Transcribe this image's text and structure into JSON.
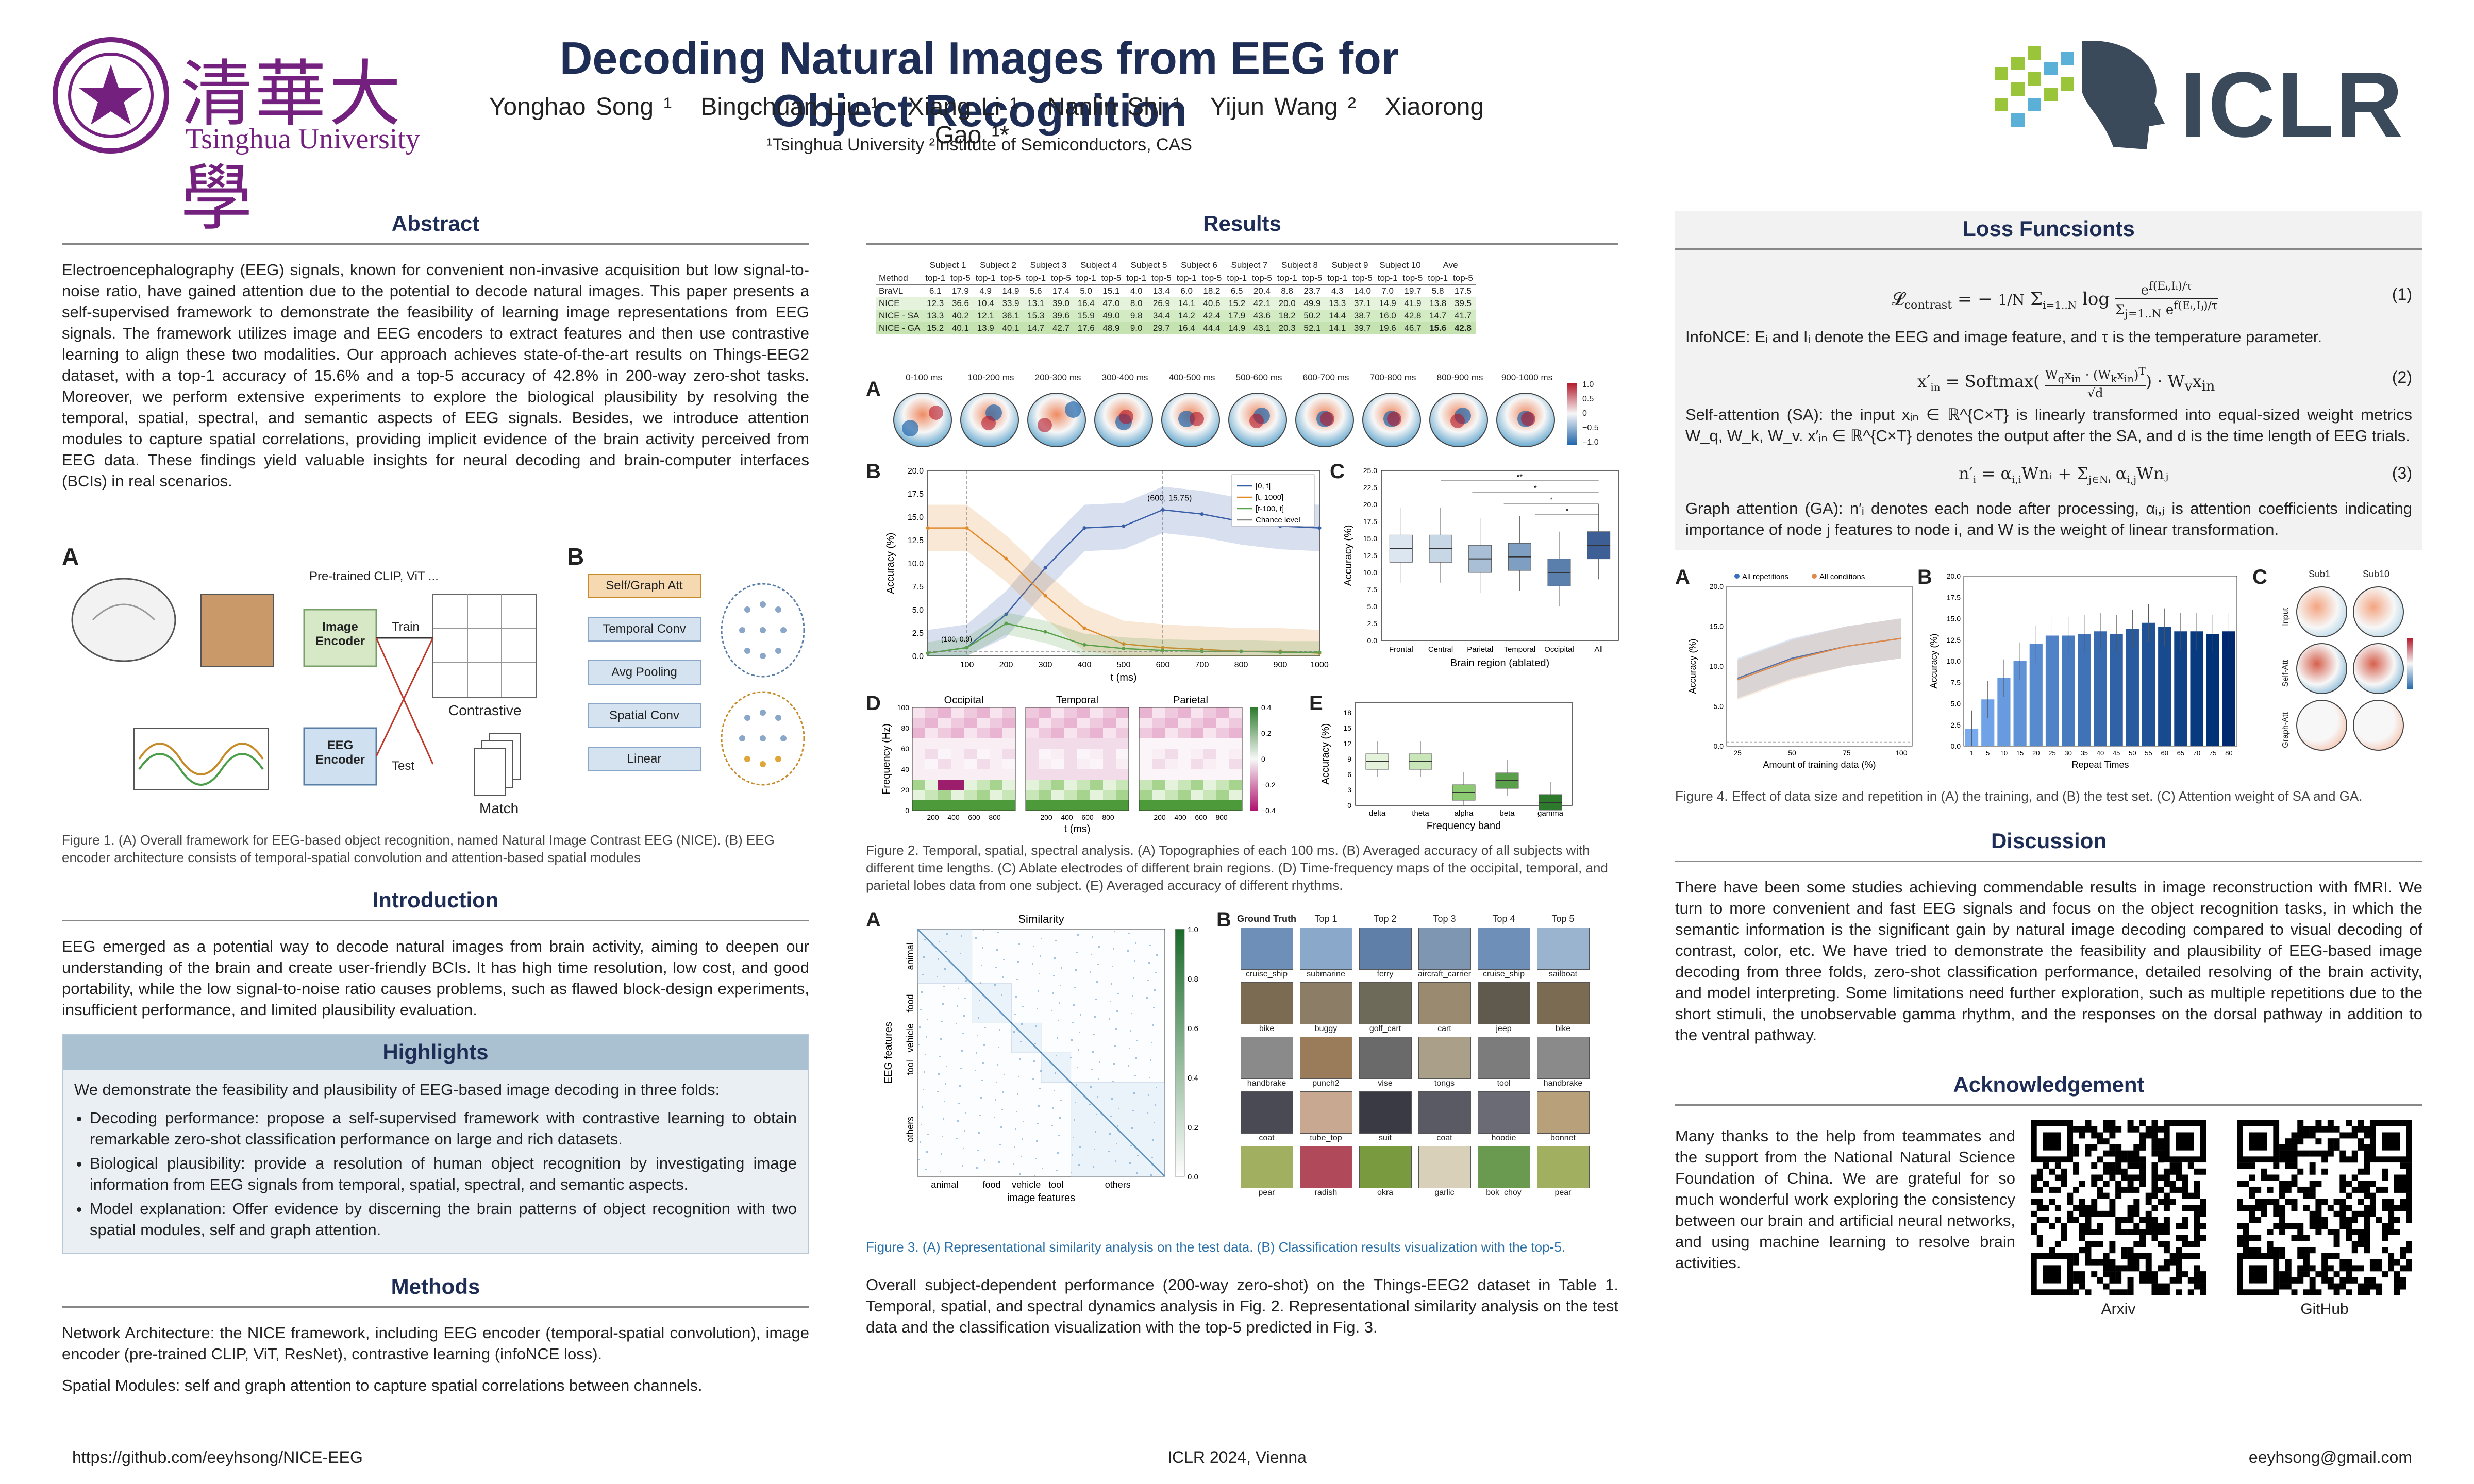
{
  "header": {
    "title": "Decoding Natural Images from EEG for Object Recognition",
    "authors": [
      "Yonghao Song ¹",
      "Bingchuan Liu ¹",
      "Xiang Li ¹",
      "Nanlin Shi ¹",
      "Yijun Wang ²",
      "Xiaorong Gao ¹*"
    ],
    "affiliations": "¹Tsinghua University ²Institute of Semiconductors, CAS",
    "left_logo_text": "Tsinghua University",
    "left_logo_chars": "清華大學",
    "right_logo_text": "ICLR"
  },
  "abstract": {
    "heading": "Abstract",
    "text": "Electroencephalography (EEG) signals, known for convenient non-invasive acquisition but low signal-to-noise ratio, have gained attention due to the potential to decode natural images. This paper presents a self-supervised framework to demonstrate the feasibility of learning image representations from EEG signals. The framework utilizes image and EEG encoders to extract features and then use contrastive learning to align these two modalities. Our approach achieves state-of-the-art results on Things-EEG2 dataset, with a top-1 accuracy of 15.6% and a top-5 accuracy of 42.8% in 200-way zero-shot tasks. Moreover, we perform extensive experiments to explore the biological plausibility by resolving the temporal, spatial, spectral, and semantic aspects of EEG signals. Besides, we introduce attention modules to capture spatial correlations, providing implicit evidence of the brain activity perceived from EEG data. These findings yield valuable insights for neural decoding and brain-computer interfaces (BCIs) in real scenarios."
  },
  "fig1": {
    "panel_a": "A",
    "panel_b": "B",
    "pretrained": "Pre-trained CLIP, ViT ...",
    "image_encoder": "Image Encoder",
    "eeg_encoder": "EEG Encoder",
    "train": "Train",
    "test": "Test",
    "contrastive": "Contrastive",
    "match": "Match",
    "arch": [
      "Self/Graph Att",
      "Temporal Conv",
      "Avg Pooling",
      "Spatial Conv",
      "Linear"
    ],
    "caption": "Figure 1. (A) Overall framework for EEG-based object recognition, named Natural Image Contrast EEG (NICE). (B) EEG encoder architecture consists of temporal-spatial convolution and attention-based spatial modules"
  },
  "introduction": {
    "heading": "Introduction",
    "text": "EEG emerged as a potential way to decode natural images from brain activity, aiming to deepen our understanding of the brain and create user-friendly BCIs. It has high time resolution, low cost, and good portability, while the low signal-to-noise ratio causes problems, such as flawed block-design experiments, insufficient performance, and limited plausibility evaluation."
  },
  "highlights": {
    "heading": "Highlights",
    "intro": "We demonstrate the feasibility and plausibility of EEG-based image decoding in three folds:",
    "items": [
      "Decoding performance: propose a self-supervised framework with contrastive learning to obtain remarkable zero-shot classification performance on large and rich datasets.",
      "Biological plausibility: provide a resolution of human object recognition by investigating image information from EEG signals from temporal, spatial, spectral, and semantic aspects.",
      "Model explanation: Offer evidence by discerning the brain patterns of object recognition with two spatial modules, self and graph attention."
    ]
  },
  "methods": {
    "heading": "Methods",
    "p1": "Network Architecture: the NICE framework, including EEG encoder (temporal-spatial convolution), image encoder (pre-trained CLIP, ViT, ResNet), contrastive learning (infoNCE loss).",
    "p2": "Spatial Modules: self and graph attention to capture spatial correlations between channels."
  },
  "results": {
    "heading": "Results",
    "table": {
      "subjects": [
        "Subject 1",
        "Subject 2",
        "Subject 3",
        "Subject 4",
        "Subject 5",
        "Subject 6",
        "Subject 7",
        "Subject 8",
        "Subject 9",
        "Subject 10",
        "Ave"
      ],
      "method_label": "Method",
      "metrics": [
        "top-1",
        "top-5"
      ],
      "rows": [
        {
          "name": "BraVL",
          "vals": [
            "6.1",
            "17.9",
            "4.9",
            "14.9",
            "5.6",
            "17.4",
            "5.0",
            "15.1",
            "4.0",
            "13.4",
            "6.0",
            "18.2",
            "6.5",
            "20.4",
            "8.8",
            "23.7",
            "4.3",
            "14.0",
            "7.0",
            "19.7",
            "5.8",
            "17.5"
          ]
        },
        {
          "name": "NICE",
          "vals": [
            "12.3",
            "36.6",
            "10.4",
            "33.9",
            "13.1",
            "39.0",
            "16.4",
            "47.0",
            "8.0",
            "26.9",
            "14.1",
            "40.6",
            "15.2",
            "42.1",
            "20.0",
            "49.9",
            "13.3",
            "37.1",
            "14.9",
            "41.9",
            "13.8",
            "39.5"
          ]
        },
        {
          "name": "NICE - SA",
          "vals": [
            "13.3",
            "40.2",
            "12.1",
            "36.1",
            "15.3",
            "39.6",
            "15.9",
            "49.0",
            "9.8",
            "34.4",
            "14.2",
            "42.4",
            "17.9",
            "43.6",
            "18.2",
            "50.2",
            "14.4",
            "38.7",
            "16.0",
            "42.8",
            "14.7",
            "41.7"
          ]
        },
        {
          "name": "NICE - GA",
          "vals": [
            "15.2",
            "40.1",
            "13.9",
            "40.1",
            "14.7",
            "42.7",
            "17.6",
            "48.9",
            "9.0",
            "29.7",
            "16.4",
            "44.4",
            "14.9",
            "43.1",
            "20.3",
            "52.1",
            "14.1",
            "39.7",
            "19.6",
            "46.7",
            "15.6",
            "42.8"
          ]
        }
      ]
    },
    "fig2": {
      "topo_labels": [
        "0-100 ms",
        "100-200 ms",
        "200-300 ms",
        "300-400 ms",
        "400-500 ms",
        "500-600 ms",
        "600-700 ms",
        "700-800 ms",
        "800-900 ms",
        "900-1000 ms"
      ],
      "colorbar": [
        "1.0",
        "0.5",
        "0",
        "−0.5",
        "−1.0"
      ],
      "b_ylabel": "Accuracy (%)",
      "b_xlabel": "t (ms)",
      "b_legend": [
        "[0, t]",
        "[t, 1000]",
        "[t-100, t]",
        "Chance level"
      ],
      "b_annot1": "(600, 15.75)",
      "b_annot2": "(100, 0.9)",
      "b_yticks": [
        "0.0",
        "2.5",
        "5.0",
        "7.5",
        "10.0",
        "12.5",
        "15.0",
        "17.5",
        "20.0"
      ],
      "b_xticks": [
        "100",
        "200",
        "300",
        "400",
        "500",
        "600",
        "700",
        "800",
        "900",
        "1000"
      ],
      "c_ylabel": "Accuracy (%)",
      "c_xlabel": "Brain region (ablated)",
      "c_cats": [
        "Frontal",
        "Central",
        "Parietal",
        "Temporal",
        "Occipital",
        "All"
      ],
      "c_yticks": [
        "0.0",
        "2.5",
        "5.0",
        "7.5",
        "10.0",
        "12.5",
        "15.0",
        "17.5",
        "20.0",
        "22.5",
        "25.0"
      ],
      "c_sig": [
        "**",
        "*",
        "*",
        "*"
      ],
      "d_titles": [
        "Occipital",
        "Temporal",
        "Parietal"
      ],
      "d_ylabel": "Frequency (Hz)",
      "d_xlabel": "t (ms)",
      "d_xticks": [
        "200",
        "400",
        "600",
        "800"
      ],
      "d_yticks": [
        "0",
        "20",
        "40",
        "60",
        "80",
        "100"
      ],
      "d_colorbar": [
        "0.4",
        "0.2",
        "0",
        "−0.2",
        "−0.4"
      ],
      "e_ylabel": "Accuracy (%)",
      "e_xlabel": "Frequency band",
      "e_cats": [
        "delta",
        "theta",
        "alpha",
        "beta",
        "gamma"
      ],
      "e_yticks": [
        "0",
        "3",
        "6",
        "9",
        "12",
        "15",
        "18"
      ],
      "caption": "Figure 2. Temporal, spatial, spectral analysis. (A) Topographies of each 100 ms. (B) Averaged accuracy of all subjects with different time lengths. (C) Ablate electrodes of different brain regions. (D) Time-frequency maps of the occipital, temporal, and parietal lobes data from one subject. (E) Averaged accuracy of different rhythms."
    },
    "fig3": {
      "sim_title": "Similarity",
      "sim_ylabel": "EEG features",
      "sim_xlabel": "image features",
      "sim_cats": [
        "animal",
        "food",
        "vehicle",
        "tool",
        "others"
      ],
      "sim_colorbar": [
        "1.0",
        "0.8",
        "0.6",
        "0.4",
        "0.2",
        "0.0"
      ],
      "grid_headers": [
        "Ground Truth",
        "Top 1",
        "Top 2",
        "Top 3",
        "Top 4",
        "Top 5"
      ],
      "grid": [
        [
          "cruise_ship",
          "submarine",
          "ferry",
          "aircraft_carrier",
          "cruise_ship",
          "sailboat"
        ],
        [
          "bike",
          "buggy",
          "golf_cart",
          "cart",
          "jeep",
          "bike"
        ],
        [
          "handbrake",
          "punch2",
          "vise",
          "tongs",
          "tool",
          "handbrake"
        ],
        [
          "coat",
          "tube_top",
          "suit",
          "coat",
          "hoodie",
          "bonnet"
        ],
        [
          "pear",
          "radish",
          "okra",
          "garlic",
          "bok_choy",
          "pear"
        ]
      ],
      "caption": "Figure 3. (A) Representational similarity analysis on the test data. (B) Classification results visualization with the top-5."
    },
    "summary": "Overall subject-dependent performance (200-way zero-shot) on the Things-EEG2 dataset in Table 1. Temporal, spatial, and spectral dynamics analysis in Fig. 2. Representational similarity analysis on the test data and the classification visualization with the top-5 predicted in Fig. 3."
  },
  "loss": {
    "heading": "Loss Funcsionts",
    "eq1_num": "(1)",
    "eq2_num": "(2)",
    "eq3_num": "(3)",
    "p1": "InfoNCE: Eᵢ and Iᵢ denote the EEG and image feature, and τ is the temperature parameter.",
    "p2": "Self-attention (SA): the input xᵢₙ ∈ ℝ^{C×T} is linearly transformed into equal-sized weight metrics W_q, W_k, W_v. x′ᵢₙ ∈ ℝ^{C×T} denotes the output after the SA, and d is the time length of EEG trials.",
    "p3": "Graph attention (GA): n′ᵢ denotes each node after processing, αᵢ,ⱼ is attention coefficients indicating importance of node j features to node i, and W is the weight of linear transformation."
  },
  "fig4": {
    "a_legend": [
      "All repetitions",
      "All conditions"
    ],
    "a_ylabel": "Accuracy (%)",
    "a_xlabel": "Amount of training data (%)",
    "a_xticks": [
      "25",
      "50",
      "75",
      "100"
    ],
    "a_yticks": [
      "0.0",
      "5.0",
      "10.0",
      "15.0",
      "20.0"
    ],
    "b_ylabel": "Accuracy (%)",
    "b_xlabel": "Repeat Times",
    "b_xticks": [
      "1",
      "5",
      "10",
      "15",
      "20",
      "25",
      "30",
      "35",
      "40",
      "45",
      "50",
      "55",
      "60",
      "65",
      "70",
      "75",
      "80"
    ],
    "b_yticks": [
      "0.0",
      "2.5",
      "5.0",
      "7.5",
      "10.0",
      "12.5",
      "15.0",
      "17.5",
      "20.0"
    ],
    "c_cols": [
      "Sub1",
      "Sub10"
    ],
    "c_rows": [
      "Input",
      "Self-Att",
      "Graph-Att"
    ],
    "caption": "Figure 4. Effect of data size and repetition in (A) the training, and (B) the test set. (C) Attention weight of SA and GA."
  },
  "discussion": {
    "heading": "Discussion",
    "text": "There have been some studies achieving commendable results in image reconstruction with fMRI. We turn to more convenient and fast EEG signals and focus on the object recognition tasks, in which the semantic information is the significant gain by natural image decoding compared to visual decoding of contrast, color, etc. We have tried to demonstrate the feasibility and plausibility of EEG-based image decoding from three folds, zero-shot classification performance, detailed resolving of the brain activity, and model interpreting. Some limitations need further exploration, such as multiple repetitions due to the short stimuli, the unobservable gamma rhythm, and the responses on the dorsal pathway in addition to the ventral pathway."
  },
  "ack": {
    "heading": "Acknowledgement",
    "text": "Many thanks to the help from teammates and the support from the National Natural Science Foundation of China. We are grateful for so much wonderful work exploring the consistency between our brain and artificial neural networks, and using machine learning to resolve brain activities.",
    "qr1": "Arxiv",
    "qr2": "GitHub"
  },
  "footer": {
    "left": "https://github.com/eeyhsong/NICE-EEG",
    "center": "ICLR 2024, Vienna",
    "right": "eeyhsong@gmail.com"
  },
  "chart_data": [
    {
      "type": "line",
      "title": "",
      "xlabel": "t (ms)",
      "ylabel": "Accuracy (%)",
      "x": [
        0,
        100,
        200,
        300,
        400,
        500,
        600,
        700,
        800,
        900,
        1000
      ],
      "ylim": [
        0,
        20
      ],
      "series": [
        {
          "name": "[0, t]",
          "values": [
            0.3,
            0.9,
            4.5,
            9.5,
            13.8,
            14.0,
            15.75,
            15.3,
            14.5,
            14.0,
            13.8
          ]
        },
        {
          "name": "[t, 1000]",
          "values": [
            13.8,
            13.8,
            10.5,
            6.5,
            3.0,
            1.3,
            0.9,
            0.7,
            0.5,
            0.5,
            0.3
          ]
        },
        {
          "name": "[t-100, t]",
          "values": [
            0.3,
            0.9,
            3.5,
            2.6,
            1.2,
            0.8,
            0.6,
            0.5,
            0.5,
            0.4,
            0.4
          ]
        },
        {
          "name": "Chance level",
          "values": [
            0.5,
            0.5,
            0.5,
            0.5,
            0.5,
            0.5,
            0.5,
            0.5,
            0.5,
            0.5,
            0.5
          ]
        }
      ]
    },
    {
      "type": "bar",
      "title": "",
      "xlabel": "Brain region (ablated)",
      "ylabel": "Accuracy (%)",
      "categories": [
        "Frontal",
        "Central",
        "Parietal",
        "Temporal",
        "Occipital",
        "All"
      ],
      "values": [
        13.5,
        13.5,
        12.0,
        12.3,
        10.0,
        14.0
      ],
      "ylim": [
        0,
        25
      ]
    },
    {
      "type": "bar",
      "title": "",
      "xlabel": "Frequency band",
      "ylabel": "Accuracy (%)",
      "categories": [
        "delta",
        "theta",
        "alpha",
        "beta",
        "gamma"
      ],
      "values": [
        8.5,
        8.5,
        2.5,
        4.8,
        0.6
      ],
      "ylim": [
        0,
        20
      ]
    },
    {
      "type": "line",
      "title": "",
      "xlabel": "Amount of training data (%)",
      "ylabel": "Accuracy (%)",
      "x": [
        25,
        50,
        75,
        100
      ],
      "ylim": [
        0,
        20
      ],
      "series": [
        {
          "name": "All repetitions",
          "values": [
            8.5,
            11.0,
            12.5,
            13.5
          ]
        },
        {
          "name": "All conditions",
          "values": [
            8.3,
            10.8,
            12.5,
            13.5
          ]
        }
      ]
    },
    {
      "type": "bar",
      "title": "",
      "xlabel": "Repeat Times",
      "ylabel": "Accuracy (%)",
      "categories": [
        "1",
        "5",
        "10",
        "15",
        "20",
        "25",
        "30",
        "35",
        "40",
        "45",
        "50",
        "55",
        "60",
        "65",
        "70",
        "75",
        "80"
      ],
      "values": [
        2.0,
        5.5,
        8.0,
        10.0,
        12.0,
        13.0,
        13.0,
        13.2,
        13.5,
        13.2,
        13.8,
        14.5,
        14.0,
        13.5,
        13.5,
        13.2,
        13.5
      ],
      "ylim": [
        0,
        20
      ]
    }
  ]
}
